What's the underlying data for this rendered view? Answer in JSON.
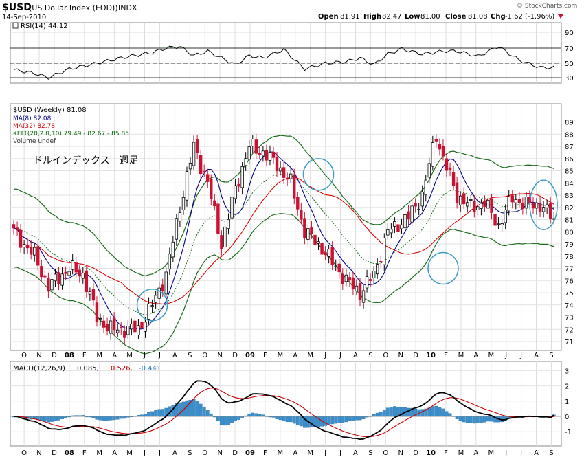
{
  "header": {
    "symbol": "$USD",
    "name": "(US Dollar Index (EOD))",
    "exchange": "INDX",
    "date": "14-Sep-2010",
    "open_label": "Open",
    "open": "81.91",
    "high_label": "High",
    "high": "82.47",
    "low_label": "Low",
    "low": "81.00",
    "close_label": "Close",
    "close": "81.08",
    "chg_label": "Chg",
    "chg": "-1.62 (-1.96%)",
    "watermark": "© StockCharts.com"
  },
  "rsi_panel": {
    "legend": "RSI(14) 44.12"
  },
  "price_panel": {
    "legend": [
      {
        "text": "$USD (Weekly) 81.08",
        "color": "#000000"
      },
      {
        "text": "MA(8) 82.08",
        "color": "#00008b"
      },
      {
        "text": "MA(32) 82.78",
        "color": "#cc0000"
      },
      {
        "text": "KELT(20,2.0,10) 79.49 - 82.67 - 85.85",
        "color": "#006400"
      },
      {
        "text": "Volume undef",
        "color": "#333333"
      }
    ],
    "annotation": "ドルインデックス　週足"
  },
  "macd_panel": {
    "legend_main": "MACD(12,26,9)",
    "macd_value": "0.085,",
    "signal_value": "0.526,",
    "hist_value": "-0.441"
  },
  "colors": {
    "up_candle": "#ffffff",
    "down_candle": "#cc1133",
    "ma_short": "#00008b",
    "ma_long": "#dd0000",
    "keltner": "#1a6b1a",
    "rsi_fill": "#3a7a3a",
    "macd_hist": "#3a8fcc",
    "circle": "#3a9bc4"
  },
  "x_axis_labels": [
    "O",
    "N",
    "D",
    "08",
    "F",
    "M",
    "A",
    "M",
    "J",
    "J",
    "A",
    "S",
    "O",
    "N",
    "D",
    "09",
    "F",
    "M",
    "A",
    "M",
    "J",
    "J",
    "A",
    "S",
    "O",
    "N",
    "D",
    "10",
    "F",
    "M",
    "A",
    "M",
    "J",
    "J",
    "A",
    "S"
  ],
  "chart_data": [
    {
      "type": "line",
      "name": "RSI(14)",
      "ylim": [
        20,
        95
      ],
      "yticks": [
        30,
        50,
        70,
        90
      ],
      "reference_lines": [
        30,
        50,
        70
      ],
      "last": 44.12,
      "x_week_index": [
        0,
        6,
        10,
        16,
        24,
        32,
        40,
        44,
        48,
        52,
        56,
        60,
        64,
        68,
        72,
        78,
        84,
        90,
        96,
        100,
        104,
        108,
        112,
        118,
        124,
        128,
        134,
        140,
        146,
        152,
        156
      ],
      "values": [
        41,
        36,
        30,
        42,
        50,
        58,
        64,
        70,
        72,
        60,
        66,
        57,
        48,
        60,
        57,
        68,
        42,
        50,
        52,
        57,
        48,
        62,
        69,
        62,
        66,
        66,
        59,
        72,
        54,
        44,
        44
      ]
    },
    {
      "type": "candlestick",
      "name": "$USD (Weekly)",
      "ylim": [
        70,
        90
      ],
      "yticks": [
        71,
        72,
        73,
        74,
        75,
        76,
        77,
        78,
        79,
        80,
        81,
        82,
        83,
        84,
        85,
        86,
        87,
        88,
        89
      ],
      "anchors_week_index": [
        0,
        6,
        10,
        16,
        20,
        24,
        28,
        36,
        40,
        44,
        48,
        52,
        56,
        60,
        64,
        68,
        72,
        76,
        80,
        84,
        88,
        92,
        96,
        100,
        104,
        108,
        112,
        114,
        118,
        122,
        124,
        128,
        132,
        136,
        140,
        144,
        148,
        152,
        156
      ],
      "anchors_close": [
        80,
        78,
        75.5,
        77,
        76.5,
        73,
        72,
        72,
        74,
        76.5,
        82,
        87,
        84,
        79,
        83.5,
        87,
        86.5,
        85.5,
        84,
        80,
        79,
        77.5,
        76,
        75,
        76.5,
        80,
        80.8,
        81.2,
        83,
        88,
        86,
        83,
        82,
        82.4,
        80.5,
        82.8,
        82.2,
        82.2,
        81.08
      ],
      "ma8_last": 82.08,
      "ma32_last": 82.78,
      "keltner": {
        "lower": 79.49,
        "middle": 82.67,
        "upper": 85.85
      }
    },
    {
      "type": "line",
      "name": "MACD(12,26,9)",
      "ylim": [
        -1.6,
        3.6
      ],
      "yticks": [
        -1,
        0,
        1,
        2,
        3
      ],
      "macd": 0.085,
      "signal": 0.526,
      "histogram": -0.441
    }
  ]
}
